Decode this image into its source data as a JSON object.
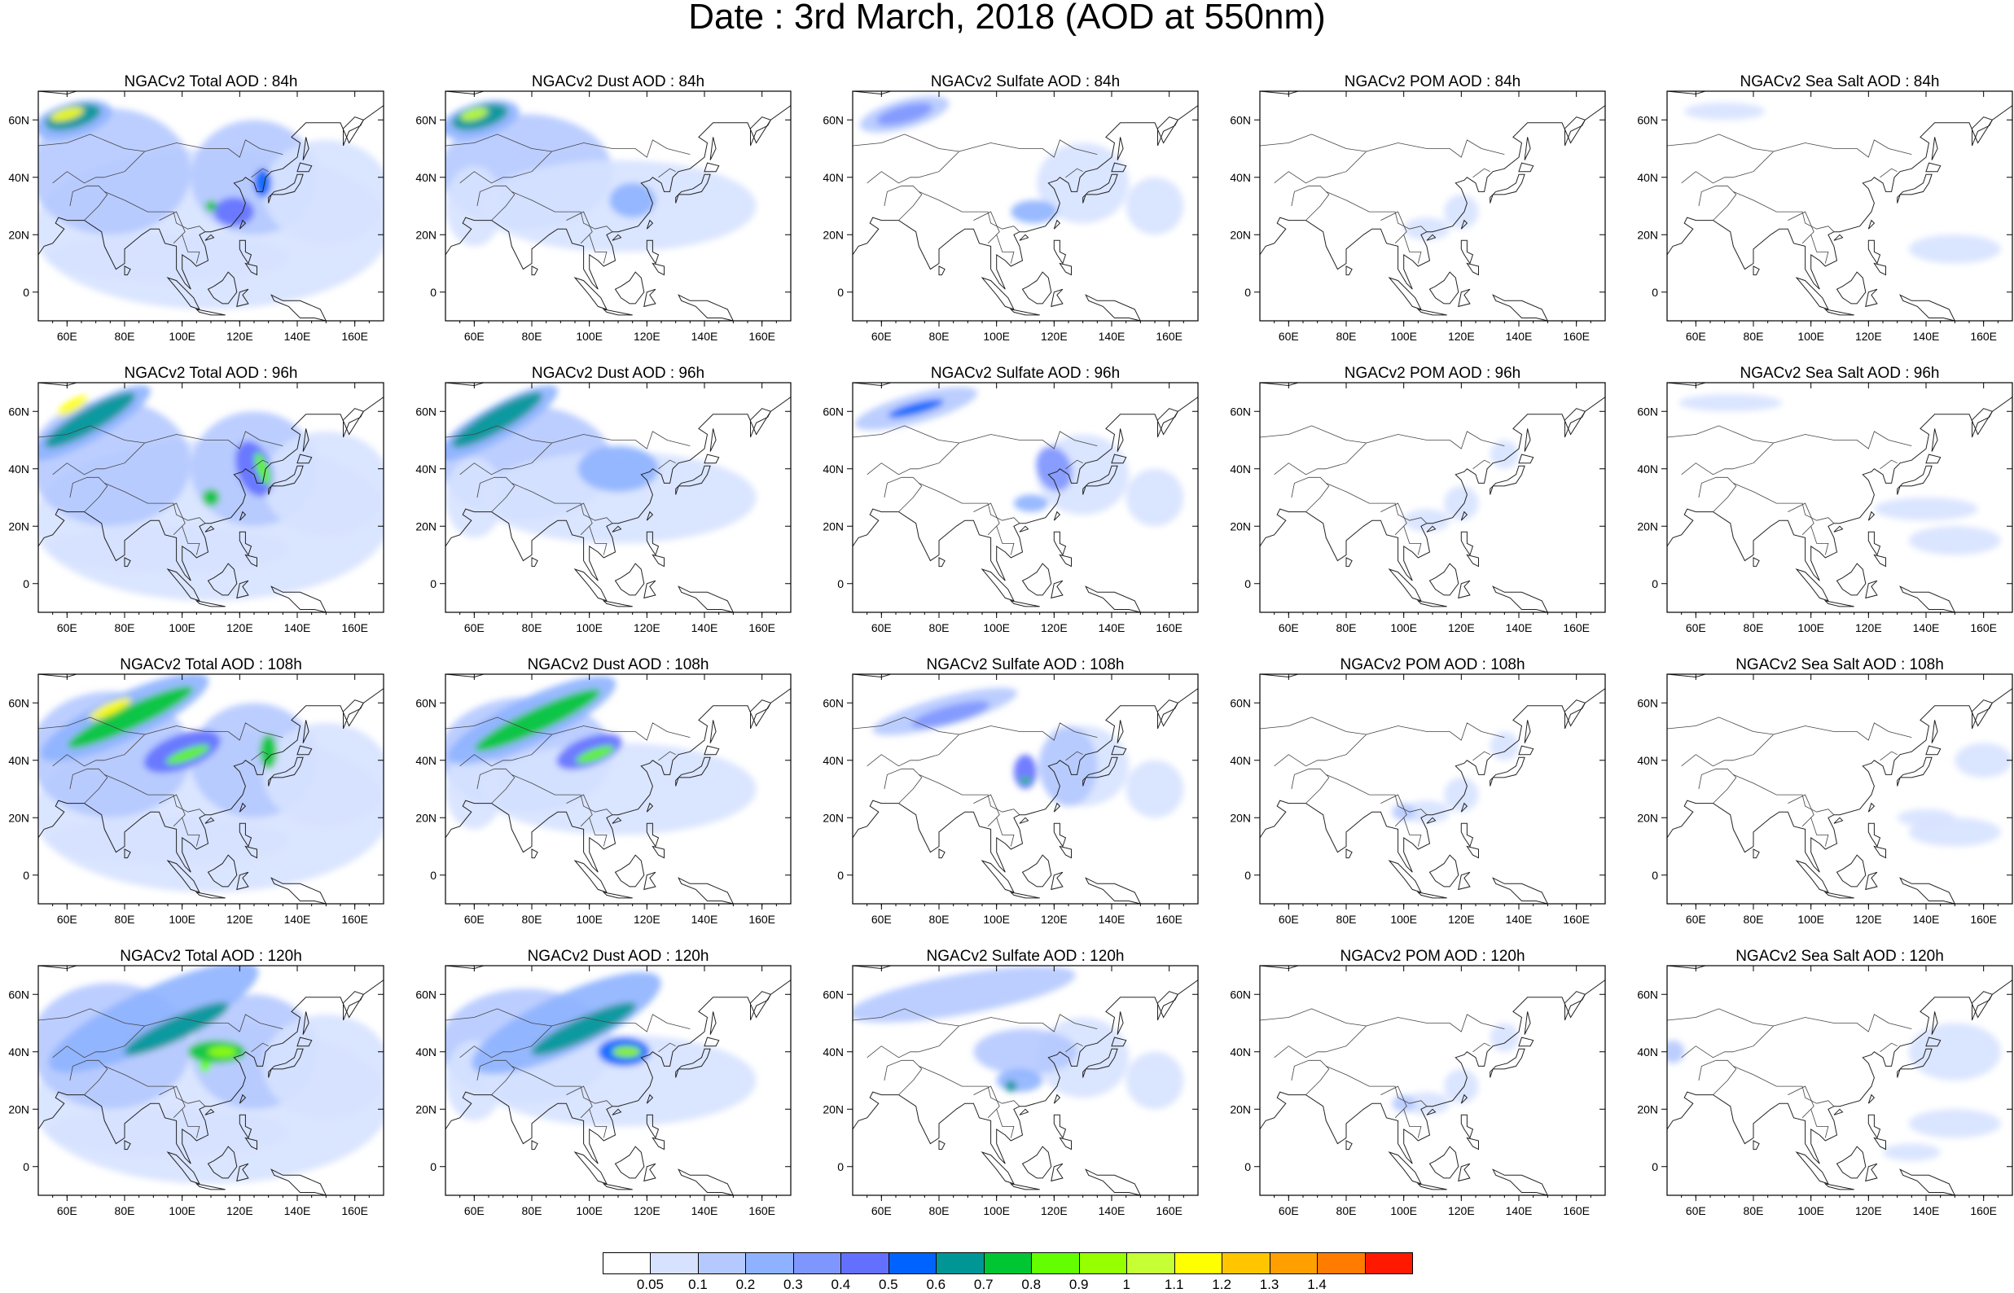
{
  "title": "Date : 3rd March, 2018 (AOD at 550nm)",
  "lon_ticks": [
    "60E",
    "80E",
    "100E",
    "120E",
    "140E",
    "160E"
  ],
  "lon_values": [
    60,
    80,
    100,
    120,
    140,
    160
  ],
  "lat_ticks": [
    "60N",
    "40N",
    "20N",
    "0"
  ],
  "lat_values": [
    60,
    40,
    20,
    0
  ],
  "map_extent": {
    "lon": [
      50,
      170
    ],
    "lat": [
      -10,
      70
    ]
  },
  "colorbar": {
    "colors": [
      "#ffffff",
      "#d6e2ff",
      "#b5c9ff",
      "#8eb2ff",
      "#7f96ff",
      "#6370ff",
      "#0063ff",
      "#009696",
      "#00c633",
      "#63ff00",
      "#96ff00",
      "#c6ff33",
      "#ffff00",
      "#ffc600",
      "#ffa000",
      "#ff7c00",
      "#ff1900"
    ],
    "labels": [
      "0.05",
      "0.1",
      "0.2",
      "0.3",
      "0.4",
      "0.5",
      "0.6",
      "0.7",
      "0.8",
      "0.9",
      "1",
      "1.1",
      "1.2",
      "1.3",
      "1.4"
    ]
  },
  "rows": [
    {
      "hour": "84h",
      "panels": [
        {
          "title": "NGACv2 Total AOD : 84h",
          "kind": "total",
          "level": 1
        },
        {
          "title": "NGACv2 Dust AOD : 84h",
          "kind": "dust",
          "level": 1
        },
        {
          "title": "NGACv2 Sulfate AOD : 84h",
          "kind": "sulfate",
          "level": 1
        },
        {
          "title": "NGACv2 POM AOD : 84h",
          "kind": "pom",
          "level": 1
        },
        {
          "title": "NGACv2 Sea Salt AOD : 84h",
          "kind": "seasalt",
          "level": 1
        }
      ]
    },
    {
      "hour": "96h",
      "panels": [
        {
          "title": "NGACv2 Total AOD : 96h",
          "kind": "total",
          "level": 2
        },
        {
          "title": "NGACv2 Dust AOD : 96h",
          "kind": "dust",
          "level": 2
        },
        {
          "title": "NGACv2 Sulfate AOD : 96h",
          "kind": "sulfate",
          "level": 2
        },
        {
          "title": "NGACv2 POM AOD : 96h",
          "kind": "pom",
          "level": 2
        },
        {
          "title": "NGACv2 Sea Salt AOD : 96h",
          "kind": "seasalt",
          "level": 2
        }
      ]
    },
    {
      "hour": "108h",
      "panels": [
        {
          "title": "NGACv2 Total AOD : 108h",
          "kind": "total",
          "level": 3
        },
        {
          "title": "NGACv2 Dust AOD : 108h",
          "kind": "dust",
          "level": 3
        },
        {
          "title": "NGACv2 Sulfate AOD : 108h",
          "kind": "sulfate",
          "level": 3
        },
        {
          "title": "NGACv2 POM AOD : 108h",
          "kind": "pom",
          "level": 3
        },
        {
          "title": "NGACv2 Sea Salt AOD : 108h",
          "kind": "seasalt",
          "level": 3
        }
      ]
    },
    {
      "hour": "120h",
      "panels": [
        {
          "title": "NGACv2 Total AOD : 120h",
          "kind": "total",
          "level": 4
        },
        {
          "title": "NGACv2 Dust AOD : 120h",
          "kind": "dust",
          "level": 4
        },
        {
          "title": "NGACv2 Sulfate AOD : 120h",
          "kind": "sulfate",
          "level": 4
        },
        {
          "title": "NGACv2 POM AOD : 120h",
          "kind": "pom",
          "level": 4
        },
        {
          "title": "NGACv2 Sea Salt  AOD : 120h",
          "kind": "seasalt",
          "level": 4
        }
      ]
    }
  ]
}
